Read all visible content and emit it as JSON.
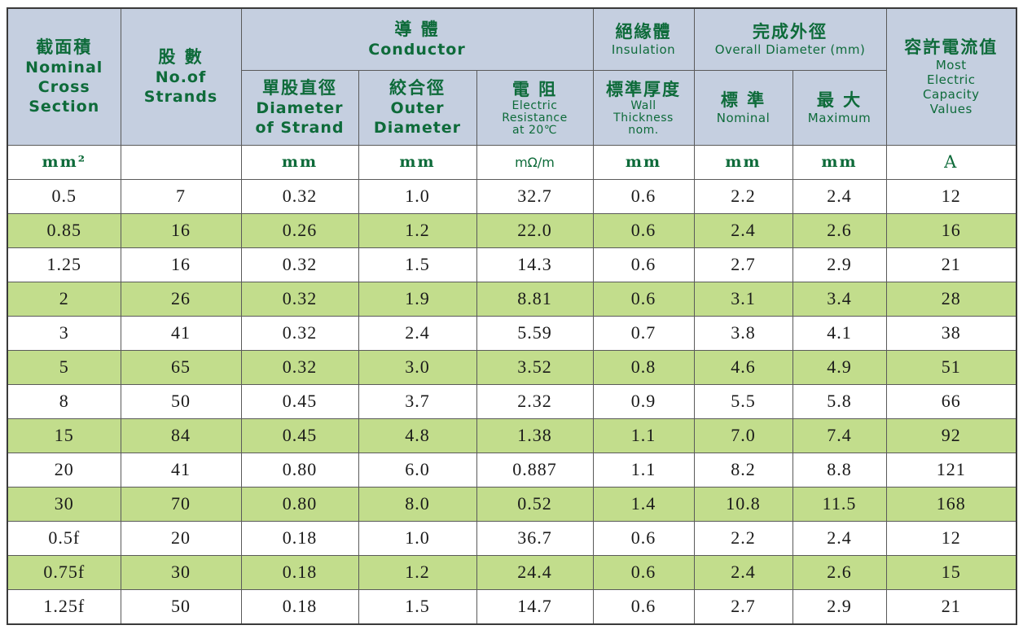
{
  "headers": {
    "cross_section": {
      "zh": "截面積",
      "en1": "Nominal",
      "en2": "Cross",
      "en3": "Section"
    },
    "strands": {
      "zh": "股 數",
      "en1": "No.of",
      "en2": "Strands"
    },
    "conductor": {
      "zh": "導 體",
      "en": "Conductor"
    },
    "insulation": {
      "zh": "絕緣體",
      "en": "Insulation"
    },
    "overall_diameter": {
      "zh": "完成外徑",
      "en": "Overall Diameter (mm)"
    },
    "capacity": {
      "zh": "容許電流值",
      "en1": "Most",
      "en2": "Electric",
      "en3": "Capacity",
      "en4": "Values"
    },
    "strand_diameter": {
      "zh": "單股直徑",
      "en1": "Diameter",
      "en2": "of Strand"
    },
    "outer_diameter": {
      "zh": "絞合徑",
      "en1": "Outer",
      "en2": "Diameter"
    },
    "resistance": {
      "zh": "電 阻",
      "en1": "Electric",
      "en2": "Resistance",
      "en3": "at 20℃"
    },
    "wall_thickness": {
      "zh": "標準厚度",
      "en1": "Wall",
      "en2": "Thickness",
      "en3": "nom."
    },
    "nominal": {
      "zh": "標 準",
      "en": "Nominal"
    },
    "maximum": {
      "zh": "最 大",
      "en": "Maximum"
    }
  },
  "units": {
    "cross_section": "mm²",
    "strands": "",
    "strand_diameter": "mm",
    "outer_diameter": "mm",
    "resistance": "mΩ/m",
    "wall_thickness": "mm",
    "nominal": "mm",
    "maximum": "mm",
    "capacity": "A"
  },
  "rows": [
    [
      "0.5",
      "7",
      "0.32",
      "1.0",
      "32.7",
      "0.6",
      "2.2",
      "2.4",
      "12"
    ],
    [
      "0.85",
      "16",
      "0.26",
      "1.2",
      "22.0",
      "0.6",
      "2.4",
      "2.6",
      "16"
    ],
    [
      "1.25",
      "16",
      "0.32",
      "1.5",
      "14.3",
      "0.6",
      "2.7",
      "2.9",
      "21"
    ],
    [
      "2",
      "26",
      "0.32",
      "1.9",
      "8.81",
      "0.6",
      "3.1",
      "3.4",
      "28"
    ],
    [
      "3",
      "41",
      "0.32",
      "2.4",
      "5.59",
      "0.7",
      "3.8",
      "4.1",
      "38"
    ],
    [
      "5",
      "65",
      "0.32",
      "3.0",
      "3.52",
      "0.8",
      "4.6",
      "4.9",
      "51"
    ],
    [
      "8",
      "50",
      "0.45",
      "3.7",
      "2.32",
      "0.9",
      "5.5",
      "5.8",
      "66"
    ],
    [
      "15",
      "84",
      "0.45",
      "4.8",
      "1.38",
      "1.1",
      "7.0",
      "7.4",
      "92"
    ],
    [
      "20",
      "41",
      "0.80",
      "6.0",
      "0.887",
      "1.1",
      "8.2",
      "8.8",
      "121"
    ],
    [
      "30",
      "70",
      "0.80",
      "8.0",
      "0.52",
      "1.4",
      "10.8",
      "11.5",
      "168"
    ],
    [
      "0.5f",
      "20",
      "0.18",
      "1.0",
      "36.7",
      "0.6",
      "2.2",
      "2.4",
      "12"
    ],
    [
      "0.75f",
      "30",
      "0.18",
      "1.2",
      "24.4",
      "0.6",
      "2.4",
      "2.6",
      "15"
    ],
    [
      "1.25f",
      "50",
      "0.18",
      "1.5",
      "14.7",
      "0.6",
      "2.7",
      "2.9",
      "21"
    ]
  ]
}
